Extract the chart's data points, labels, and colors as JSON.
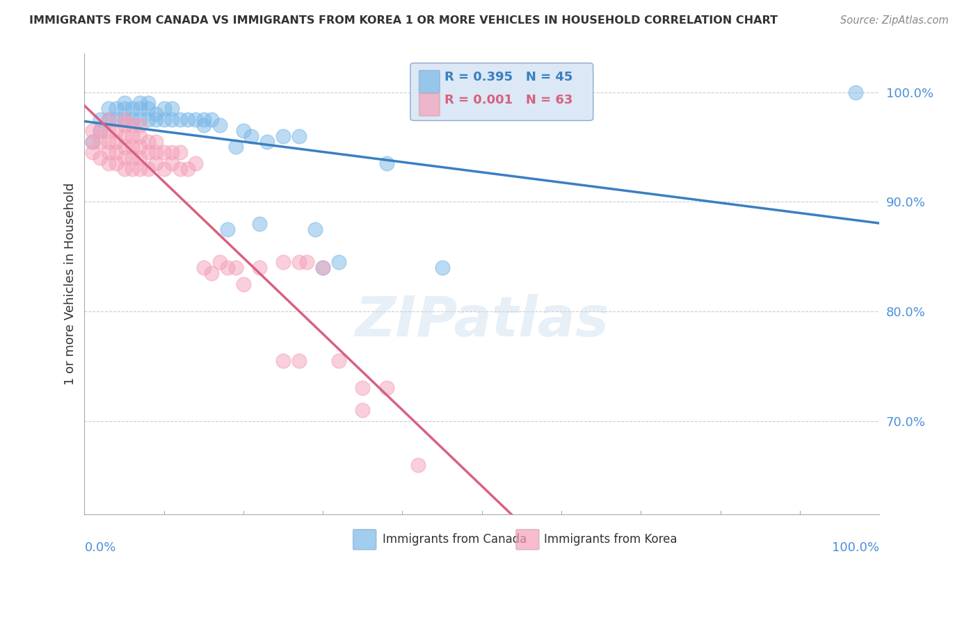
{
  "title": "IMMIGRANTS FROM CANADA VS IMMIGRANTS FROM KOREA 1 OR MORE VEHICLES IN HOUSEHOLD CORRELATION CHART",
  "source": "Source: ZipAtlas.com",
  "ylabel": "1 or more Vehicles in Household",
  "ytick_labels": [
    "100.0%",
    "90.0%",
    "80.0%",
    "70.0%"
  ],
  "ytick_values": [
    1.0,
    0.9,
    0.8,
    0.7
  ],
  "xlim": [
    0.0,
    1.0
  ],
  "ylim": [
    0.615,
    1.035
  ],
  "legend_canada": "Immigrants from Canada",
  "legend_korea": "Immigrants from Korea",
  "R_canada": 0.395,
  "N_canada": 45,
  "R_korea": 0.001,
  "N_korea": 63,
  "canada_color": "#7ab8e8",
  "korea_color": "#f4a0b8",
  "canada_line_color": "#3a7fc1",
  "korea_line_color": "#d96080",
  "canada_scatter_x": [
    0.01,
    0.02,
    0.02,
    0.03,
    0.03,
    0.04,
    0.04,
    0.05,
    0.05,
    0.05,
    0.06,
    0.06,
    0.07,
    0.07,
    0.07,
    0.08,
    0.08,
    0.08,
    0.09,
    0.09,
    0.1,
    0.1,
    0.11,
    0.11,
    0.12,
    0.13,
    0.14,
    0.15,
    0.15,
    0.16,
    0.17,
    0.18,
    0.19,
    0.2,
    0.21,
    0.22,
    0.23,
    0.25,
    0.27,
    0.29,
    0.3,
    0.32,
    0.38,
    0.45,
    0.97
  ],
  "canada_scatter_y": [
    0.955,
    0.965,
    0.975,
    0.975,
    0.985,
    0.975,
    0.985,
    0.975,
    0.985,
    0.99,
    0.975,
    0.985,
    0.975,
    0.985,
    0.99,
    0.975,
    0.985,
    0.99,
    0.975,
    0.98,
    0.975,
    0.985,
    0.975,
    0.985,
    0.975,
    0.975,
    0.975,
    0.975,
    0.97,
    0.975,
    0.97,
    0.875,
    0.95,
    0.965,
    0.96,
    0.88,
    0.955,
    0.96,
    0.96,
    0.875,
    0.84,
    0.845,
    0.935,
    0.84,
    1.0
  ],
  "korea_scatter_x": [
    0.01,
    0.01,
    0.01,
    0.02,
    0.02,
    0.02,
    0.03,
    0.03,
    0.03,
    0.03,
    0.03,
    0.04,
    0.04,
    0.04,
    0.04,
    0.05,
    0.05,
    0.05,
    0.05,
    0.05,
    0.05,
    0.06,
    0.06,
    0.06,
    0.06,
    0.06,
    0.07,
    0.07,
    0.07,
    0.07,
    0.07,
    0.08,
    0.08,
    0.08,
    0.09,
    0.09,
    0.09,
    0.1,
    0.1,
    0.11,
    0.11,
    0.12,
    0.12,
    0.13,
    0.14,
    0.15,
    0.16,
    0.17,
    0.18,
    0.19,
    0.2,
    0.22,
    0.25,
    0.25,
    0.27,
    0.27,
    0.28,
    0.3,
    0.32,
    0.35,
    0.35,
    0.38,
    0.42
  ],
  "korea_scatter_y": [
    0.945,
    0.955,
    0.965,
    0.94,
    0.955,
    0.965,
    0.935,
    0.945,
    0.955,
    0.965,
    0.975,
    0.935,
    0.945,
    0.955,
    0.965,
    0.93,
    0.94,
    0.95,
    0.96,
    0.97,
    0.975,
    0.93,
    0.94,
    0.95,
    0.96,
    0.97,
    0.93,
    0.94,
    0.95,
    0.96,
    0.97,
    0.93,
    0.945,
    0.955,
    0.935,
    0.945,
    0.955,
    0.93,
    0.945,
    0.935,
    0.945,
    0.93,
    0.945,
    0.93,
    0.935,
    0.84,
    0.835,
    0.845,
    0.84,
    0.84,
    0.825,
    0.84,
    0.755,
    0.845,
    0.845,
    0.755,
    0.845,
    0.84,
    0.755,
    0.73,
    0.71,
    0.73,
    0.66
  ]
}
